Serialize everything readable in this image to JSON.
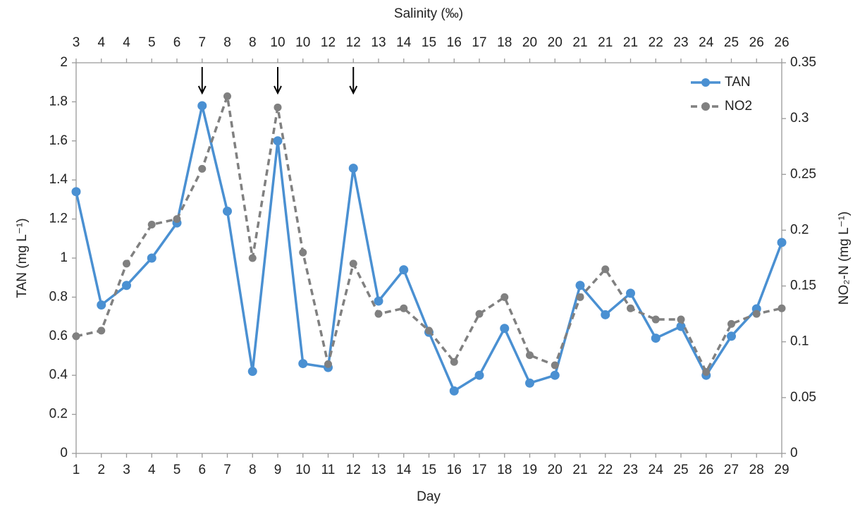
{
  "chart_data": {
    "type": "line",
    "xlabel": "Day",
    "top_xlabel": "Salinity (‰)",
    "ylabel": "TAN (mg L⁻¹)",
    "y2label": "NO₂-N (mg L⁻¹)",
    "x": [
      1,
      2,
      3,
      4,
      5,
      6,
      7,
      8,
      9,
      10,
      11,
      12,
      13,
      14,
      15,
      16,
      17,
      18,
      19,
      20,
      21,
      22,
      23,
      24,
      25,
      26,
      27,
      28,
      29
    ],
    "top_categories": [
      "3",
      "4",
      "4",
      "5",
      "6",
      "7",
      "8",
      "8",
      "10",
      "10",
      "12",
      "12",
      "13",
      "14",
      "15",
      "16",
      "17",
      "18",
      "20",
      "20",
      "21",
      "21",
      "21",
      "22",
      "23",
      "24",
      "25",
      "26",
      "26"
    ],
    "xlim": [
      1,
      29
    ],
    "ylim": [
      0,
      2
    ],
    "yticks": [
      0,
      0.2,
      0.4,
      0.6,
      0.8,
      1,
      1.2,
      1.4,
      1.6,
      1.8,
      2
    ],
    "y2lim": [
      0,
      0.35
    ],
    "y2ticks": [
      0,
      0.05,
      0.1,
      0.15,
      0.2,
      0.25,
      0.3,
      0.35
    ],
    "arrows_x": [
      6,
      9,
      12
    ],
    "legend": "upper right",
    "series": [
      {
        "name": "TAN",
        "color": "#4a90d2",
        "dashed": false,
        "values": [
          1.34,
          0.76,
          0.86,
          1.0,
          1.18,
          1.78,
          1.24,
          0.42,
          1.6,
          0.46,
          0.44,
          1.46,
          0.78,
          0.94,
          0.62,
          0.32,
          0.4,
          0.64,
          0.36,
          0.4,
          0.86,
          0.71,
          0.82,
          0.59,
          0.65,
          0.4,
          0.6,
          0.74,
          1.08
        ]
      },
      {
        "name": "NO2",
        "color": "#808080",
        "dashed": true,
        "axis": "y2",
        "values": [
          0.105,
          0.11,
          0.17,
          0.205,
          0.21,
          0.255,
          0.32,
          0.175,
          0.31,
          0.18,
          0.08,
          0.17,
          0.125,
          0.13,
          0.11,
          0.082,
          0.125,
          0.14,
          0.088,
          0.079,
          0.14,
          0.165,
          0.13,
          0.12,
          0.12,
          0.073,
          0.116,
          0.125,
          0.13
        ]
      }
    ]
  }
}
